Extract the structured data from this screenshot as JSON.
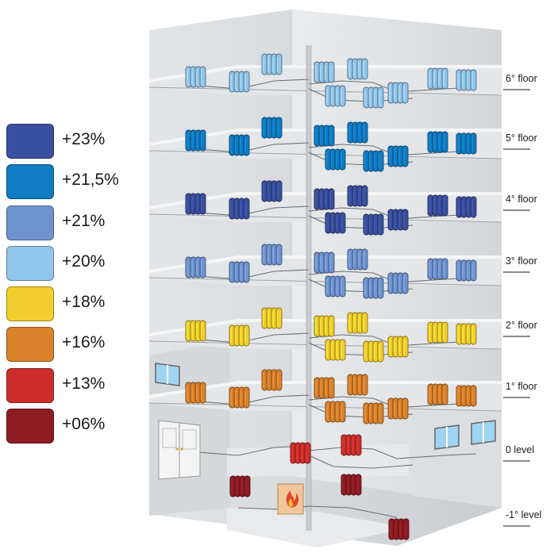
{
  "legend": [
    {
      "label": "+23%",
      "color": "#3a4f9f"
    },
    {
      "label": "+21,5%",
      "color": "#0f7cc3"
    },
    {
      "label": "+21%",
      "color": "#6f93cf"
    },
    {
      "label": "+20%",
      "color": "#92c5ea"
    },
    {
      "label": "+18%",
      "color": "#f1ce2d"
    },
    {
      "label": "+16%",
      "color": "#d9812c"
    },
    {
      "label": "+13%",
      "color": "#cc2f2b"
    },
    {
      "label": "+06%",
      "color": "#8e1c24"
    }
  ],
  "floors": [
    {
      "label": "6° floor",
      "color": "#92c5ea"
    },
    {
      "label": "5° floor",
      "color": "#0f7cc3"
    },
    {
      "label": "4° floor",
      "color": "#3a4f9f"
    },
    {
      "label": "3° floor",
      "color": "#6f93cf"
    },
    {
      "label": "2° floor",
      "color": "#f1ce2d"
    },
    {
      "label": "1° floor",
      "color": "#d9812c"
    },
    {
      "label": "0  level",
      "color": "#cc2f2b"
    },
    {
      "label": "-1° level",
      "color": "#8e1c24"
    }
  ]
}
